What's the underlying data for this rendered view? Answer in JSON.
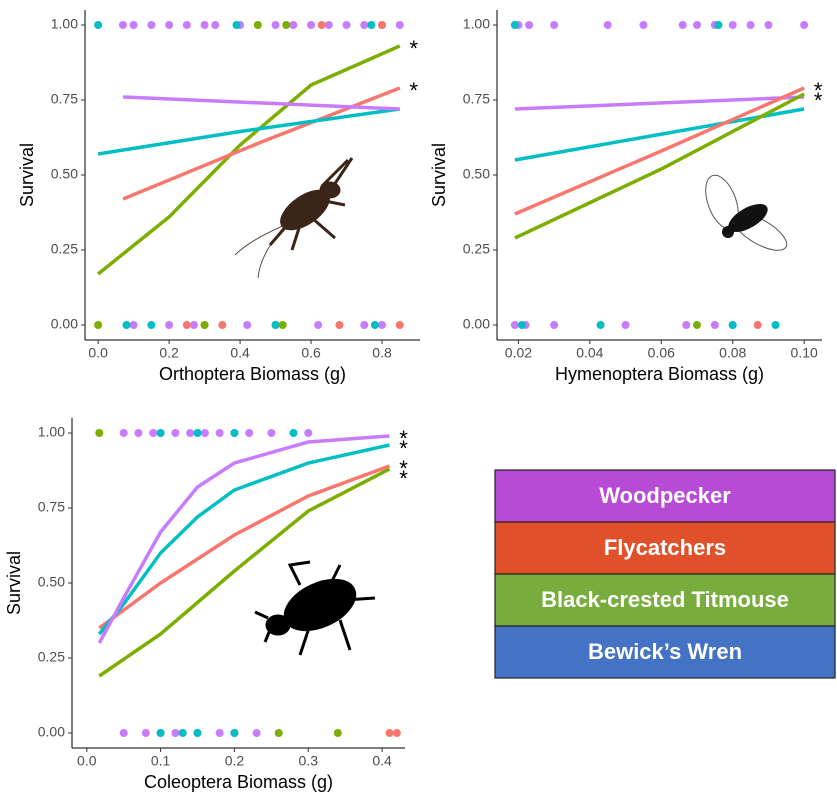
{
  "chart_data": [
    {
      "type": "scatter",
      "xlabel": "Orthoptera Biomass (g)",
      "ylabel": "Survival",
      "xlim": [
        -0.037,
        0.907
      ],
      "ylim": [
        -0.05,
        1.05
      ],
      "xticks": [
        {
          "value": 0,
          "label": "0.0"
        },
        0.2,
        0.4,
        0.6,
        0.8
      ],
      "yticks": [
        {
          "value": 0,
          "label": "0.00"
        },
        0.25,
        {
          "value": 0.5,
          "label": "0.50"
        },
        0.75,
        {
          "value": 1,
          "label": "1.00"
        }
      ],
      "curves": [
        {
          "color": "#7cae00",
          "x": [
            0,
            0.2,
            0.4,
            0.6,
            0.85
          ],
          "values": [
            0.17,
            0.36,
            0.6,
            0.8,
            0.93
          ]
        },
        {
          "color": "#f8766d",
          "x": [
            0.07,
            0.46,
            0.85
          ],
          "values": [
            0.42,
            0.61,
            0.79
          ]
        },
        {
          "color": "#00bfc4",
          "x": [
            0,
            0.4,
            0.85
          ],
          "values": [
            0.57,
            0.645,
            0.72
          ]
        },
        {
          "color": "#c77cff",
          "x": [
            0.07,
            0.85
          ],
          "values": [
            0.76,
            0.72
          ]
        }
      ],
      "points": [
        {
          "color": "#c77cff",
          "x": [
            0.07,
            0.1,
            0.15,
            0.2,
            0.25,
            0.3,
            0.33,
            0.4,
            0.5,
            0.55,
            0.6,
            0.65,
            0.7,
            0.75,
            0.8,
            0.85,
            0.1,
            0.2,
            0.27,
            0.3,
            0.42,
            0.5,
            0.62,
            0.75,
            0.8
          ],
          "values": [
            1,
            1,
            1,
            1,
            1,
            1,
            1,
            1,
            1,
            1,
            1,
            1,
            1,
            1,
            1,
            1,
            0,
            0,
            0,
            0,
            0,
            0,
            0,
            0,
            0
          ]
        },
        {
          "color": "#00bfc4",
          "x": [
            0,
            0.39,
            0.77,
            0.08,
            0.15,
            0.5,
            0.78
          ],
          "values": [
            1,
            1,
            1,
            0,
            0,
            0,
            0
          ]
        },
        {
          "color": "#7cae00",
          "x": [
            0.45,
            0.53,
            0,
            0.3,
            0.52
          ],
          "values": [
            1,
            1,
            0,
            0,
            0
          ]
        },
        {
          "color": "#f8766d",
          "x": [
            0.63,
            0.8,
            0.25,
            0.35,
            0.68,
            0.85
          ],
          "values": [
            1,
            1,
            0,
            0,
            0,
            0
          ]
        }
      ],
      "annotations": [
        "*",
        "*"
      ]
    },
    {
      "type": "scatter",
      "xlabel": "Hymenoptera Biomass (g)",
      "ylabel": "Survival",
      "xlim": [
        0.014,
        0.105
      ],
      "ylim": [
        -0.05,
        1.05
      ],
      "xticks": [
        0.02,
        0.04,
        0.06,
        0.08,
        {
          "value": 0.1,
          "label": "0.10"
        }
      ],
      "yticks": [
        {
          "value": 0,
          "label": "0.00"
        },
        0.25,
        {
          "value": 0.5,
          "label": "0.50"
        },
        0.75,
        {
          "value": 1,
          "label": "1.00"
        }
      ],
      "curves": [
        {
          "color": "#c77cff",
          "x": [
            0.019,
            0.1
          ],
          "values": [
            0.72,
            0.76
          ]
        },
        {
          "color": "#00bfc4",
          "x": [
            0.019,
            0.1
          ],
          "values": [
            0.55,
            0.72
          ]
        },
        {
          "color": "#f8766d",
          "x": [
            0.019,
            0.06,
            0.1
          ],
          "values": [
            0.37,
            0.58,
            0.79
          ]
        },
        {
          "color": "#7cae00",
          "x": [
            0.019,
            0.06,
            0.1
          ],
          "values": [
            0.29,
            0.52,
            0.77
          ]
        }
      ],
      "points": [
        {
          "color": "#c77cff",
          "x": [
            0.02,
            0.023,
            0.03,
            0.045,
            0.055,
            0.066,
            0.07,
            0.075,
            0.08,
            0.085,
            0.09,
            0.1,
            0.019,
            0.022,
            0.03,
            0.05,
            0.067,
            0.075,
            0.08
          ],
          "values": [
            1,
            1,
            1,
            1,
            1,
            1,
            1,
            1,
            1,
            1,
            1,
            1,
            0,
            0,
            0,
            0,
            0,
            0,
            0
          ]
        },
        {
          "color": "#00bfc4",
          "x": [
            0.019,
            0.076,
            0.021,
            0.043,
            0.08,
            0.092
          ],
          "values": [
            1,
            1,
            0,
            0,
            0,
            0
          ]
        },
        {
          "color": "#7cae00",
          "x": [
            0.07
          ],
          "values": [
            0
          ]
        },
        {
          "color": "#f8766d",
          "x": [
            0.087
          ],
          "values": [
            0
          ]
        }
      ],
      "annotations": [
        "*",
        "*"
      ]
    },
    {
      "type": "scatter",
      "xlabel": "Coleoptera Biomass (g)",
      "ylabel": "Survival",
      "xlim": [
        -0.02,
        0.431
      ],
      "ylim": [
        -0.05,
        1.05
      ],
      "xticks": [
        {
          "value": 0,
          "label": "0.0"
        },
        0.1,
        0.2,
        0.3,
        0.4
      ],
      "yticks": [
        {
          "value": 0,
          "label": "0.00"
        },
        0.25,
        {
          "value": 0.5,
          "label": "0.50"
        },
        0.75,
        {
          "value": 1,
          "label": "1.00"
        }
      ],
      "curves": [
        {
          "color": "#7cae00",
          "x": [
            0.017,
            0.1,
            0.2,
            0.3,
            0.41
          ],
          "values": [
            0.19,
            0.33,
            0.54,
            0.74,
            0.88
          ]
        },
        {
          "color": "#f8766d",
          "x": [
            0.017,
            0.1,
            0.2,
            0.3,
            0.41
          ],
          "values": [
            0.35,
            0.5,
            0.66,
            0.79,
            0.89
          ]
        },
        {
          "color": "#00bfc4",
          "x": [
            0.017,
            0.05,
            0.1,
            0.15,
            0.2,
            0.3,
            0.41
          ],
          "values": [
            0.33,
            0.43,
            0.6,
            0.72,
            0.81,
            0.9,
            0.96
          ]
        },
        {
          "color": "#c77cff",
          "x": [
            0.017,
            0.05,
            0.1,
            0.15,
            0.2,
            0.3,
            0.41
          ],
          "values": [
            0.3,
            0.45,
            0.67,
            0.82,
            0.9,
            0.97,
            0.99
          ]
        }
      ],
      "points": [
        {
          "color": "#c77cff",
          "x": [
            0.05,
            0.07,
            0.09,
            0.1,
            0.12,
            0.14,
            0.16,
            0.18,
            0.2,
            0.22,
            0.25,
            0.3,
            0.05,
            0.08,
            0.1,
            0.12,
            0.15,
            0.18,
            0.2,
            0.23
          ],
          "values": [
            1,
            1,
            1,
            1,
            1,
            1,
            1,
            1,
            1,
            1,
            1,
            1,
            0,
            0,
            0,
            0,
            0,
            0,
            0,
            0
          ]
        },
        {
          "color": "#00bfc4",
          "x": [
            0.1,
            0.15,
            0.2,
            0.28,
            0.1,
            0.13,
            0.15,
            0.2
          ],
          "values": [
            1,
            1,
            1,
            1,
            0,
            0,
            0,
            0
          ]
        },
        {
          "color": "#7cae00",
          "x": [
            0.017,
            0.26,
            0.34
          ],
          "values": [
            1,
            0,
            0
          ]
        },
        {
          "color": "#f8766d",
          "x": [
            0.41,
            0.42
          ],
          "values": [
            0,
            0
          ]
        }
      ],
      "annotations": [
        "*",
        "*",
        "*",
        "*"
      ]
    }
  ],
  "legend": {
    "entries": [
      {
        "label": "Woodpecker",
        "color": "#b84bd6"
      },
      {
        "label": "Flycatchers",
        "color": "#e0512b"
      },
      {
        "label": "Black-crested Titmouse",
        "color": "#78ad3d"
      },
      {
        "label": "Bewick’s Wren",
        "color": "#4472c4"
      }
    ]
  }
}
